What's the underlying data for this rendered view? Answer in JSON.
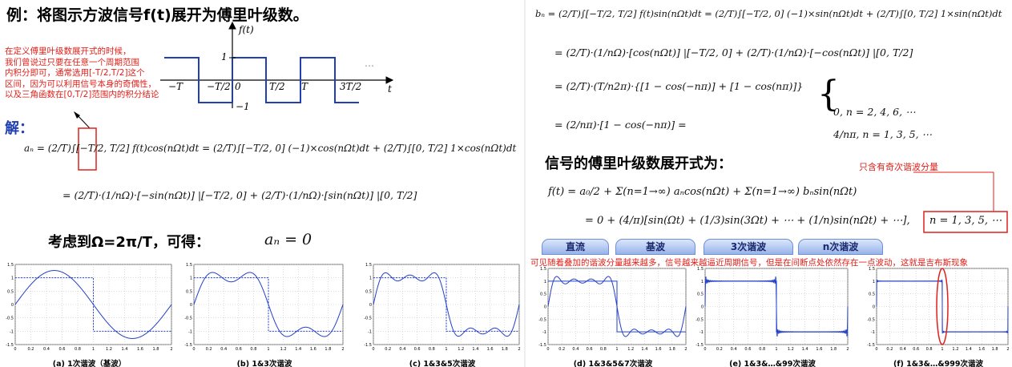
{
  "left": {
    "title": "例：将图示方波信号f(t)展开为傅里叶级数。",
    "note_lines": [
      "在定义傅里叶级数展开式的时候，",
      "我们曾说过只要在任意一个周期范围",
      "内积分即可，通常选用[-T/2,T/2]这个",
      "区间，因为可以利用信号本身的奇偶性，",
      "以及三角函数在[0,T/2]范围内的积分结论"
    ],
    "wave": {
      "y_label": "f(t)",
      "x_label": "t",
      "high": "1",
      "low": "−1",
      "ellipsis": "…",
      "ticks": [
        "−T",
        "−T/2",
        "0",
        "T/2",
        "T",
        "3T/2"
      ]
    },
    "solution_label": "解：",
    "an_lines": [
      "aₙ = (2/T)∫[−T/2, T/2] f(t)cos(nΩt)dt = (2/T)∫[−T/2, 0] (−1)×cos(nΩt)dt + (2/T)∫[0, T/2] 1×cos(nΩt)dt",
      "= (2/T)·(1/nΩ)·[−sin(nΩt)] |[−T/2, 0] + (2/T)·(1/nΩ)·[sin(nΩt)] |[0, T/2]"
    ],
    "conclusion": "考虑到Ω=2π/T，可得：",
    "an_result": "aₙ = 0"
  },
  "right": {
    "bn_lines": [
      "bₙ = (2/T)∫[−T/2, T/2] f(t)sin(nΩt)dt = (2/T)∫[−T/2, 0] (−1)×sin(nΩt)dt + (2/T)∫[0, T/2] 1×sin(nΩt)dt",
      "= (2/T)·(1/nΩ)·[cos(nΩt)] |[−T/2, 0] + (2/T)·(1/nΩ)·[−cos(nΩt)] |[0, T/2]",
      "= (2/T)·(T/n2π)·{[1 − cos(−nπ)] + [1 − cos(nπ)]}",
      "= (2/nπ)·[1 − cos(−nπ)] ="
    ],
    "bn_cases": [
      "0,    n = 2, 4, 6, ⋯",
      "4/nπ,    n = 1, 3, 5, ⋯"
    ],
    "expansion_title": "信号的傅里叶级数展开式为：",
    "odd_note": "只含有奇次谐波分量",
    "series_lines": [
      "f(t) = a₀/2 + Σ(n=1→∞) aₙcos(nΩt) + Σ(n=1→∞) bₙsin(nΩt)",
      "= 0 + (4/π)[sin(Ωt) + (1/3)sin(3Ωt) + ⋯ + (1/n)sin(nΩt) + ⋯],"
    ],
    "condition": "n = 1, 3, 5, ⋯",
    "tabs": [
      "直流",
      "基波",
      "3次谐波",
      "n次谐波"
    ],
    "gibbs_note": "可见随着叠加的谐波分量越来越多，信号越来越逼近周期信号，但是在间断点处依然存在一点波动，这就是吉布斯现象"
  },
  "plots": {
    "xticks": [
      0,
      0.2,
      0.4,
      0.6,
      0.8,
      1,
      1.2,
      1.4,
      1.6,
      1.8,
      2
    ],
    "yticks": [
      -1.5,
      -1,
      -0.5,
      0,
      0.5,
      1,
      1.5
    ],
    "captions": [
      "(a) 1次谐波（基波）",
      "(b) 1&3次谐波",
      "(c) 1&3&5次谐波",
      "(d) 1&3&5&7次谐波",
      "(e) 1&3&…&99次谐波",
      "(f) 1&3&…&999次谐波"
    ]
  }
}
